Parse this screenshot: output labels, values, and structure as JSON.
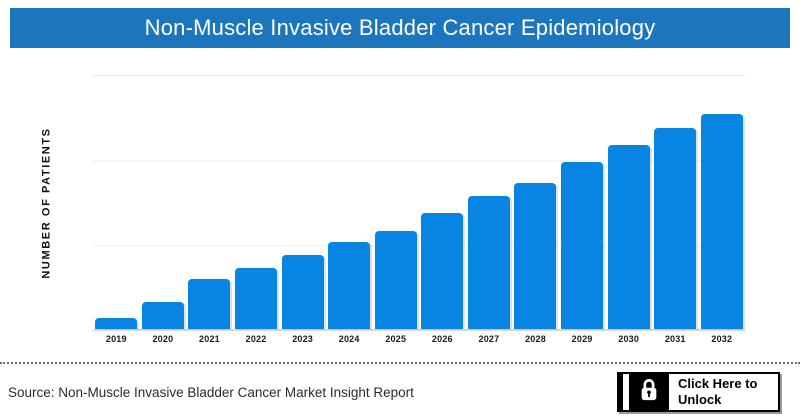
{
  "header": {
    "title": "Non-Muscle Invasive Bladder Cancer Epidemiology",
    "bg_color": "#1C76BD",
    "text_color": "#FFFFFF"
  },
  "chart_data": {
    "type": "bar",
    "title": "Non-Muscle Invasive Bladder Cancer Epidemiology",
    "categories": [
      "2019",
      "2020",
      "2021",
      "2022",
      "2023",
      "2024",
      "2025",
      "2026",
      "2027",
      "2028",
      "2029",
      "2030",
      "2031",
      "2032"
    ],
    "values": [
      11,
      27,
      50,
      61,
      74,
      87,
      98,
      116,
      133,
      146,
      167,
      184,
      201,
      215
    ],
    "xlabel": "",
    "ylabel": "NUMBER OF PATIENTS",
    "ylim": [
      0,
      256
    ],
    "y_tick_labels_visible": false,
    "grid": "horizontal",
    "gridline_count": 4,
    "legend": "none",
    "bar_color": "#0885E2",
    "gridline_color": "#ECECEC",
    "baseline_color": "#D8D8D8"
  },
  "footer": {
    "source": "Source: Non-Muscle Invasive Bladder Cancer Market Insight Report",
    "unlock_button": {
      "line1": "Click Here to",
      "line2": "Unlock",
      "icon": "lock-icon"
    }
  }
}
